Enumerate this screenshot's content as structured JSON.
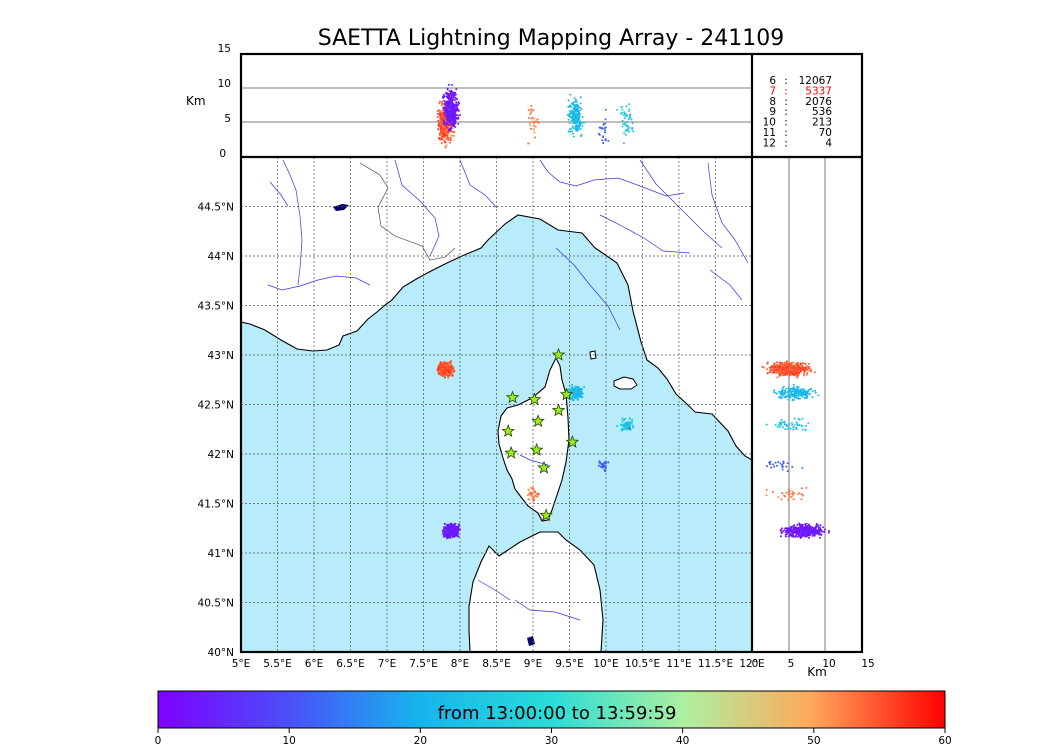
{
  "title": "SAETTA Lightning Mapping Array - 241109",
  "top_panel": {
    "ylabel": "Km",
    "yticks": [
      "15",
      "10",
      "5",
      "0"
    ]
  },
  "side_panel": {
    "xlabel": "Km",
    "xticks": [
      "0",
      "5",
      "10",
      "15"
    ]
  },
  "map": {
    "lon_ticks": [
      "5°E",
      "5.5°E",
      "6°E",
      "6.5°E",
      "7°E",
      "7.5°E",
      "8°E",
      "8.5°E",
      "9°E",
      "9.5°E",
      "10°E",
      "10.5°E",
      "11°E",
      "11.5°E",
      "12°E"
    ],
    "lat_ticks": [
      "40°N",
      "40.5°N",
      "41°N",
      "41.5°N",
      "42°N",
      "42.5°N",
      "43°N",
      "43.5°N",
      "44°N",
      "44.5°N"
    ],
    "sea_color": "#b8ecfb",
    "land_color": "#ffffff",
    "river_color": "#3333ee"
  },
  "stats": [
    {
      "stations": "6",
      "sep": ":",
      "count": "12067",
      "highlight": false
    },
    {
      "stations": "7",
      "sep": ":",
      "count": "5337",
      "highlight": true
    },
    {
      "stations": "8",
      "sep": ":",
      "count": "2076",
      "highlight": false
    },
    {
      "stations": "9",
      "sep": ":",
      "count": "536",
      "highlight": false
    },
    {
      "stations": "10",
      "sep": ":",
      "count": "213",
      "highlight": false
    },
    {
      "stations": "11",
      "sep": ":",
      "count": "70",
      "highlight": false
    },
    {
      "stations": "12",
      "sep": ":",
      "count": "4",
      "highlight": false
    }
  ],
  "colorbar": {
    "label": "from 13:00:00 to 13:59:59",
    "ticks": [
      "0",
      "10",
      "20",
      "30",
      "40",
      "50",
      "60"
    ]
  },
  "stations_icon": "star-icon",
  "chart_data": {
    "type": "scatter",
    "title": "SAETTA Lightning Mapping Array - 241109",
    "xlim": [
      5,
      12
    ],
    "ylim": [
      40,
      45
    ],
    "alt_lim_km": [
      0,
      15
    ],
    "color_scale_minutes": [
      0,
      60
    ],
    "clusters": [
      {
        "lon": 7.8,
        "lat": 42.86,
        "alt_km": 5.0,
        "minute": 55,
        "count": 520
      },
      {
        "lon": 7.88,
        "lat": 41.22,
        "alt_km": 7.0,
        "minute": 3,
        "count": 420
      },
      {
        "lon": 9.58,
        "lat": 42.62,
        "alt_km": 6.0,
        "minute": 22,
        "count": 200
      },
      {
        "lon": 10.28,
        "lat": 42.3,
        "alt_km": 5.0,
        "minute": 25,
        "count": 50
      },
      {
        "lon": 9.97,
        "lat": 41.88,
        "alt_km": 4.0,
        "minute": 12,
        "count": 25
      },
      {
        "lon": 9.0,
        "lat": 41.6,
        "alt_km": 5.0,
        "minute": 53,
        "count": 30
      }
    ],
    "stations": [
      {
        "lon": 9.35,
        "lat": 43.0
      },
      {
        "lon": 8.72,
        "lat": 42.57
      },
      {
        "lon": 9.02,
        "lat": 42.55
      },
      {
        "lon": 9.46,
        "lat": 42.6
      },
      {
        "lon": 9.35,
        "lat": 42.44
      },
      {
        "lon": 9.07,
        "lat": 42.33
      },
      {
        "lon": 8.66,
        "lat": 42.23
      },
      {
        "lon": 9.54,
        "lat": 42.12
      },
      {
        "lon": 9.05,
        "lat": 42.04
      },
      {
        "lon": 8.7,
        "lat": 42.01
      },
      {
        "lon": 9.15,
        "lat": 41.86
      },
      {
        "lon": 9.18,
        "lat": 41.38
      }
    ]
  }
}
